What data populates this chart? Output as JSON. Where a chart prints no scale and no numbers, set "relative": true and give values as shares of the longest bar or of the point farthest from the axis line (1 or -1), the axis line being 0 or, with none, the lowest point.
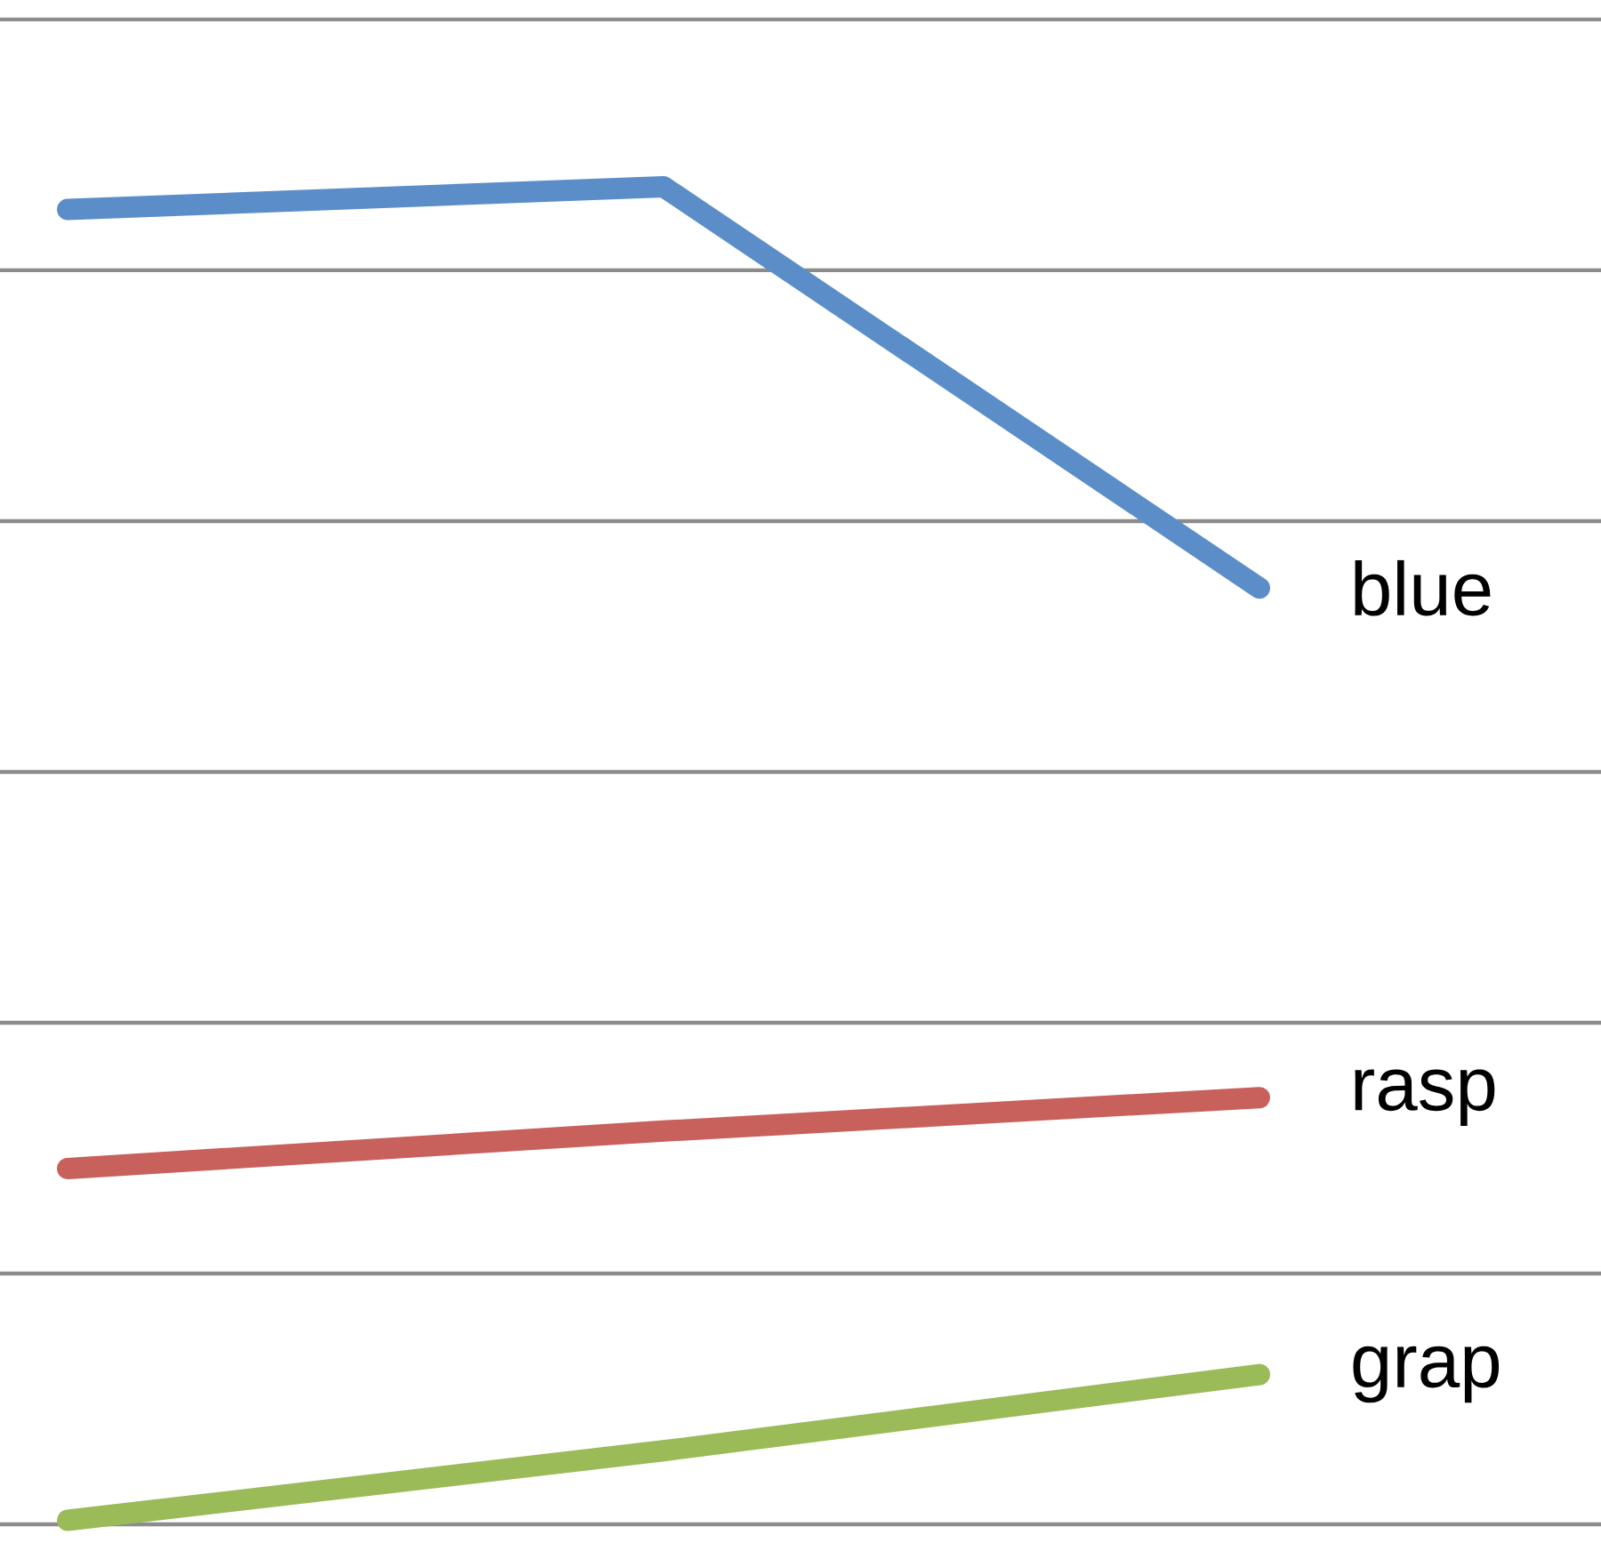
{
  "chart_data": {
    "type": "line",
    "relative": true,
    "grid": "y",
    "marker": "none",
    "categories": [
      null,
      null,
      null
    ],
    "series": [
      {
        "name": "blue",
        "color": "#5b8ec8",
        "values": [
          0.983,
          1.0,
          0.7
        ]
      },
      {
        "name": "rasp",
        "color": "#c8605c",
        "values": [
          0.266,
          0.294,
          0.319
        ]
      },
      {
        "name": "grap",
        "color": "#9bbb59",
        "values": [
          0.003,
          0.055,
          0.112
        ]
      }
    ]
  }
}
